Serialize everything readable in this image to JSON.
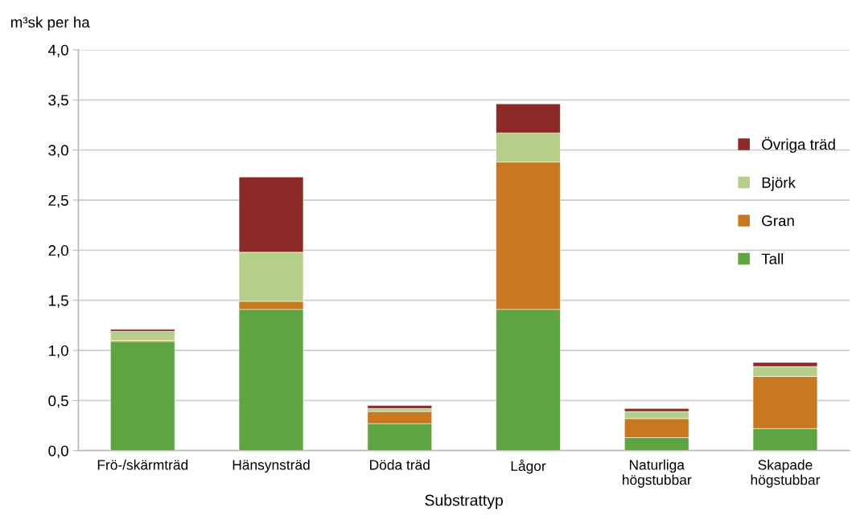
{
  "chart_data": {
    "type": "bar",
    "stacked": true,
    "ylabel": "m³sk per ha",
    "xlabel": "Substrattyp",
    "categories": [
      "Frö-/skärmträd",
      "Hänsynsträd",
      "Döda träd",
      "Lågor",
      "Naturliga\nhögstubbar",
      "Skapade\nhögstubbar"
    ],
    "series": [
      {
        "name": "Tall",
        "color": "#5ea443",
        "values": [
          1.09,
          1.41,
          0.27,
          1.41,
          0.13,
          0.22
        ]
      },
      {
        "name": "Gran",
        "color": "#c87821",
        "values": [
          0.01,
          0.08,
          0.12,
          1.47,
          0.19,
          0.52
        ]
      },
      {
        "name": "Björk",
        "color": "#b5cf88",
        "values": [
          0.09,
          0.49,
          0.03,
          0.29,
          0.07,
          0.1
        ]
      },
      {
        "name": "Övriga träd",
        "color": "#8b2a27",
        "values": [
          0.02,
          0.75,
          0.03,
          0.29,
          0.03,
          0.04
        ]
      }
    ],
    "ylim": [
      0,
      4
    ],
    "yticks": [
      {
        "value": 0,
        "label": "0,0"
      },
      {
        "value": 0.5,
        "label": "0,5"
      },
      {
        "value": 1,
        "label": "1,0"
      },
      {
        "value": 1.5,
        "label": "1,5"
      },
      {
        "value": 2,
        "label": "2,0"
      },
      {
        "value": 2.5,
        "label": "2,5"
      },
      {
        "value": 3,
        "label": "3,0"
      },
      {
        "value": 3.5,
        "label": "3,5"
      },
      {
        "value": 4,
        "label": "4,0"
      }
    ],
    "grid": "y",
    "legend": "right"
  }
}
